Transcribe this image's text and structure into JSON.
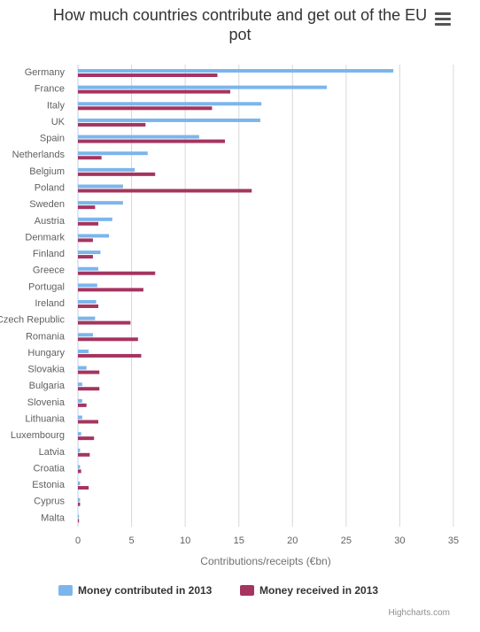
{
  "header": {
    "title_line1": "How much countries contribute and get out of the EU",
    "title_line2": "pot",
    "menu_icon": "hamburger-menu-icon"
  },
  "credits": "Highcharts.com",
  "colors": {
    "contributed": "#7cb5ec",
    "received": "#a5345f",
    "grid": "#d8d8d8",
    "axis_text": "#606060"
  },
  "chart_data": {
    "type": "bar",
    "title": "How much countries contribute and get out of the EU pot",
    "xlabel": "Contributions/receipts (€bn)",
    "xlim": [
      0,
      35
    ],
    "ticks": [
      0,
      5,
      10,
      15,
      20,
      25,
      30,
      35
    ],
    "grid": true,
    "legend_placement": "bottom",
    "categories": [
      "Germany",
      "France",
      "Italy",
      "UK",
      "Spain",
      "Netherlands",
      "Belgium",
      "Poland",
      "Sweden",
      "Austria",
      "Denmark",
      "Finland",
      "Greece",
      "Portugal",
      "Ireland",
      "Czech Republic",
      "Romania",
      "Hungary",
      "Slovakia",
      "Bulgaria",
      "Slovenia",
      "Lithuania",
      "Luxembourg",
      "Latvia",
      "Croatia",
      "Estonia",
      "Cyprus",
      "Malta"
    ],
    "series": [
      {
        "name": "Money contributed in 2013",
        "values": [
          29.4,
          23.2,
          17.1,
          17.0,
          11.3,
          6.5,
          5.3,
          4.2,
          4.2,
          3.2,
          2.9,
          2.1,
          1.9,
          1.8,
          1.7,
          1.6,
          1.4,
          1.0,
          0.8,
          0.4,
          0.4,
          0.4,
          0.3,
          0.2,
          0.2,
          0.2,
          0.2,
          0.1
        ]
      },
      {
        "name": "Money received in 2013",
        "values": [
          13.0,
          14.2,
          12.5,
          6.3,
          13.7,
          2.2,
          7.2,
          16.2,
          1.6,
          1.9,
          1.4,
          1.4,
          7.2,
          6.1,
          1.9,
          4.9,
          5.6,
          5.9,
          2.0,
          2.0,
          0.8,
          1.9,
          1.5,
          1.1,
          0.3,
          1.0,
          0.2,
          0.1
        ]
      }
    ]
  }
}
